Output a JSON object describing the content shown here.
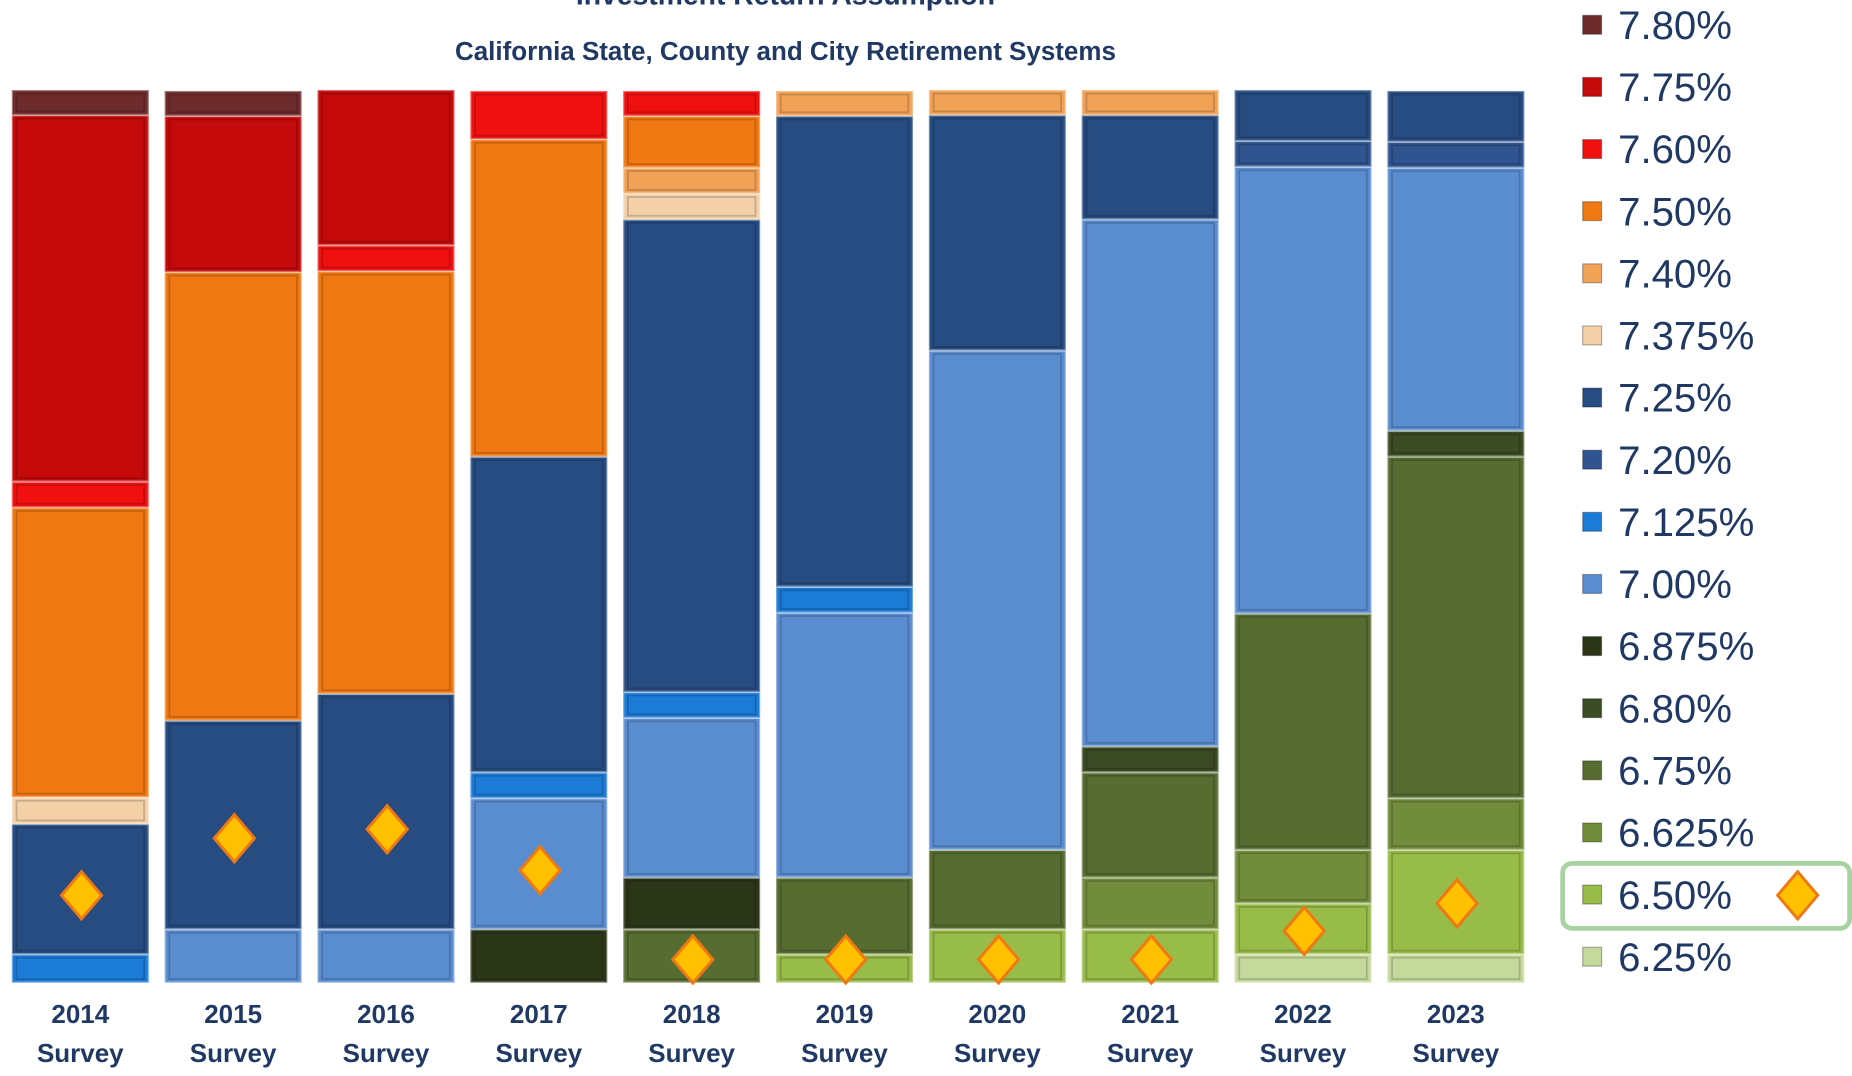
{
  "chart_data": {
    "type": "stacked_bar_100",
    "title": "Investment Return Assumption",
    "subtitle": "California State, County and City Retirement Systems",
    "categories": [
      "2014 Survey",
      "2015 Survey",
      "2016 Survey",
      "2017 Survey",
      "2018 Survey",
      "2019 Survey",
      "2020 Survey",
      "2021 Survey",
      "2022 Survey",
      "2023 Survey"
    ],
    "ylim": [
      0,
      100
    ],
    "legend": "right",
    "series": [
      {
        "name": "7.80%",
        "color": "#6e2b2b",
        "values": [
          2.8,
          2.8,
          0,
          0,
          0,
          0,
          0,
          0,
          0,
          0
        ]
      },
      {
        "name": "7.75%",
        "color": "#c40a0a",
        "values": [
          41.1,
          17.5,
          17.4,
          0,
          0,
          0,
          0,
          0,
          0,
          0
        ]
      },
      {
        "name": "7.60%",
        "color": "#f01010",
        "values": [
          2.9,
          0,
          2.9,
          5.4,
          2.8,
          0,
          0,
          0,
          0,
          0
        ]
      },
      {
        "name": "7.50%",
        "color": "#f07812",
        "values": [
          32.5,
          50.3,
          47.4,
          35.6,
          5.8,
          0,
          0,
          0,
          0,
          0
        ]
      },
      {
        "name": "7.40%",
        "color": "#f2a257",
        "values": [
          0,
          0,
          0,
          0,
          2.9,
          2.8,
          2.8,
          2.8,
          0,
          0
        ]
      },
      {
        "name": "7.375%",
        "color": "#f4d0a8",
        "values": [
          3.0,
          0,
          0,
          0,
          2.9,
          0,
          0,
          0,
          0,
          0
        ]
      },
      {
        "name": "7.25%",
        "color": "#264c82",
        "values": [
          14.6,
          23.4,
          26.4,
          35.4,
          53.0,
          52.8,
          26.4,
          11.7,
          5.7,
          5.7
        ]
      },
      {
        "name": "7.20%",
        "color": "#2f5490",
        "values": [
          0,
          0,
          0,
          0,
          0,
          0,
          0,
          0,
          2.9,
          2.9
        ]
      },
      {
        "name": "7.125%",
        "color": "#1c7bd6",
        "values": [
          3.2,
          0,
          0,
          2.9,
          2.9,
          2.9,
          0,
          0,
          0,
          0
        ]
      },
      {
        "name": "7.00%",
        "color": "#5a8dd0",
        "values": [
          0,
          6.0,
          6.0,
          14.7,
          17.9,
          29.7,
          56.0,
          59.1,
          50.1,
          29.5
        ]
      },
      {
        "name": "6.875%",
        "color": "#2b3619",
        "values": [
          0,
          0,
          0,
          6.0,
          5.8,
          0,
          0,
          0,
          0,
          0
        ]
      },
      {
        "name": "6.80%",
        "color": "#3b4b23",
        "values": [
          0,
          0,
          0,
          0,
          0,
          0,
          0,
          2.9,
          0,
          2.9
        ]
      },
      {
        "name": "6.75%",
        "color": "#566c30",
        "values": [
          0,
          0,
          0,
          0,
          6.0,
          8.6,
          8.9,
          11.8,
          26.5,
          38.3
        ]
      },
      {
        "name": "6.625%",
        "color": "#718c3a",
        "values": [
          0,
          0,
          0,
          0,
          0,
          0,
          0,
          5.8,
          6.0,
          5.8
        ]
      },
      {
        "name": "6.50%",
        "color": "#98bc48",
        "values": [
          0,
          0,
          0,
          0,
          0,
          3.2,
          6.0,
          6.0,
          5.7,
          11.7
        ]
      },
      {
        "name": "6.25%",
        "color": "#c6d99c",
        "values": [
          0,
          0,
          0,
          0,
          0,
          0,
          0,
          0,
          3.2,
          3.2
        ]
      }
    ],
    "markers": {
      "color": "#ffc000",
      "values": [
        9.8,
        16.2,
        17.2,
        12.6,
        2.6,
        2.6,
        2.6,
        2.6,
        5.8,
        8.9
      ]
    }
  }
}
